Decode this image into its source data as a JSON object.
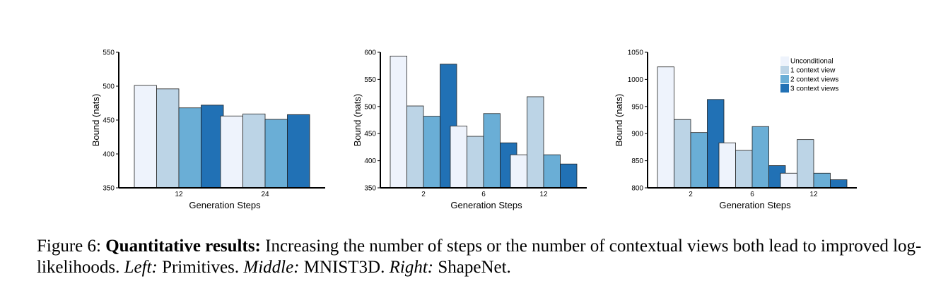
{
  "colors": [
    "#eef3fc",
    "#bcd4e6",
    "#6aaed6",
    "#2171b5"
  ],
  "legend": [
    "Unconditional",
    "1 context view",
    "2 context views",
    "3 context views"
  ],
  "chart_data": [
    {
      "type": "bar",
      "categories": [
        "12",
        "24"
      ],
      "xlabel": "Generation Steps",
      "ylabel": "Bound (nats)",
      "ylim": [
        350,
        550
      ],
      "yticks": [
        350,
        400,
        450,
        500,
        550
      ],
      "series": [
        {
          "name": "Unconditional",
          "values": [
            501,
            456
          ]
        },
        {
          "name": "1 context view",
          "values": [
            496,
            459
          ]
        },
        {
          "name": "2 context views",
          "values": [
            468,
            451
          ]
        },
        {
          "name": "3 context views",
          "values": [
            472,
            458
          ]
        }
      ]
    },
    {
      "type": "bar",
      "categories": [
        "2",
        "6",
        "12"
      ],
      "xlabel": "Generation Steps",
      "ylabel": "Bound (nats)",
      "ylim": [
        350,
        600
      ],
      "yticks": [
        350,
        400,
        450,
        500,
        550,
        600
      ],
      "series": [
        {
          "name": "Unconditional",
          "values": [
            593,
            464,
            411
          ]
        },
        {
          "name": "1 context view",
          "values": [
            501,
            445,
            518
          ]
        },
        {
          "name": "2 context views",
          "values": [
            482,
            487,
            411
          ]
        },
        {
          "name": "3 context views",
          "values": [
            578,
            433,
            394
          ]
        }
      ]
    },
    {
      "type": "bar",
      "categories": [
        "2",
        "6",
        "12"
      ],
      "xlabel": "Generation Steps",
      "ylabel": "Bound (nats)",
      "ylim": [
        800,
        1050
      ],
      "yticks": [
        800,
        850,
        900,
        950,
        1000,
        1050
      ],
      "legend": "top-right",
      "series": [
        {
          "name": "Unconditional",
          "values": [
            1023,
            883,
            827
          ]
        },
        {
          "name": "1 context view",
          "values": [
            926,
            869,
            889
          ]
        },
        {
          "name": "2 context views",
          "values": [
            902,
            913,
            827
          ]
        },
        {
          "name": "3 context views",
          "values": [
            963,
            841,
            815
          ]
        }
      ]
    }
  ],
  "caption": {
    "prefix": "Figure 6: ",
    "bold": "Quantitative results:",
    "text1": " Increasing the number of steps or the number of contextual views both lead to improved log-likelihoods. ",
    "left_label": "Left:",
    "left_text": " Primitives. ",
    "middle_label": "Middle:",
    "middle_text": " MNIST3D. ",
    "right_label": "Right:",
    "right_text": " ShapeNet."
  }
}
